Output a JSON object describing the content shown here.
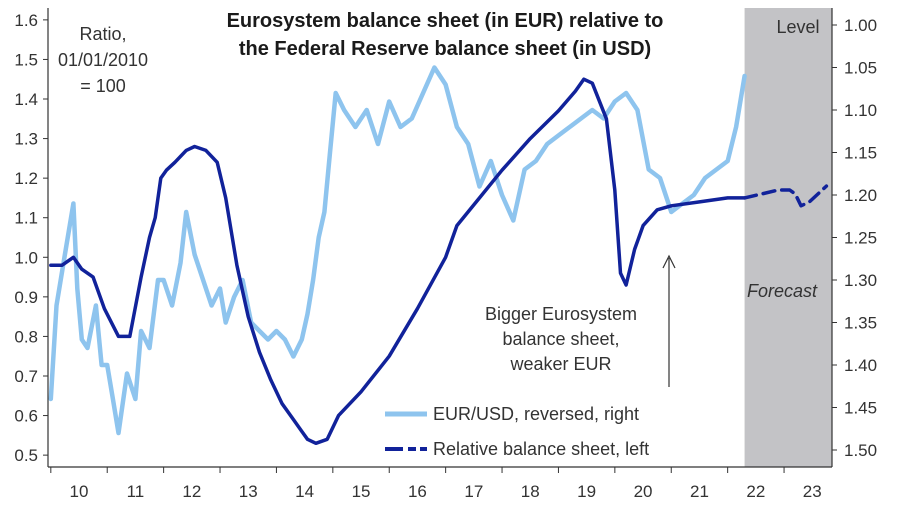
{
  "chart_data": {
    "type": "line",
    "title_lines": [
      "Eurosystem balance sheet (in EUR) relative to",
      "the Federal Reserve balance sheet (in USD)"
    ],
    "left_axis_note_lines": [
      "Ratio,",
      "01/01/2010",
      "= 100"
    ],
    "right_axis_label": "Level",
    "forecast_label": "Forecast",
    "annotation_lines": [
      "Bigger Eurosystem",
      "balance sheet,",
      "weaker EUR"
    ],
    "x_ticks": [
      "10",
      "11",
      "12",
      "13",
      "14",
      "15",
      "16",
      "17",
      "18",
      "19",
      "20",
      "21",
      "22",
      "23"
    ],
    "xlim": [
      2009.95,
      2023.85
    ],
    "left_ticks": [
      "0.5",
      "0.6",
      "0.7",
      "0.8",
      "0.9",
      "1.0",
      "1.1",
      "1.2",
      "1.3",
      "1.4",
      "1.5",
      "1.6"
    ],
    "ylim_left": [
      0.47,
      1.63
    ],
    "right_ticks": [
      "1.00",
      "1.05",
      "1.10",
      "1.15",
      "1.20",
      "1.25",
      "1.30",
      "1.35",
      "1.40",
      "1.45",
      "1.50"
    ],
    "ylim_right_reversed": [
      0.98,
      1.52
    ],
    "forecast_start": 2022.3,
    "colors": {
      "eurusd": "#8ec4ee",
      "relative": "#11229a",
      "forecast_shade": "#c3c3c6"
    },
    "legend": [
      {
        "label": "EUR/USD, reversed, right",
        "style": "solid-light"
      },
      {
        "label": "Relative balance sheet, left",
        "style": "solid-dashed-dark"
      }
    ],
    "series": [
      {
        "name": "EUR/USD, reversed, right",
        "axis": "right",
        "x": [
          2010.0,
          2010.1,
          2010.25,
          2010.4,
          2010.47,
          2010.55,
          2010.65,
          2010.8,
          2010.9,
          2011.0,
          2011.1,
          2011.2,
          2011.35,
          2011.5,
          2011.6,
          2011.75,
          2011.9,
          2012.0,
          2012.15,
          2012.3,
          2012.4,
          2012.55,
          2012.7,
          2012.85,
          2013.0,
          2013.1,
          2013.25,
          2013.4,
          2013.55,
          2013.7,
          2013.85,
          2014.0,
          2014.15,
          2014.3,
          2014.45,
          2014.55,
          2014.65,
          2014.75,
          2014.85,
          2014.95,
          2015.05,
          2015.2,
          2015.4,
          2015.6,
          2015.8,
          2016.0,
          2016.2,
          2016.4,
          2016.6,
          2016.8,
          2017.0,
          2017.2,
          2017.4,
          2017.6,
          2017.8,
          2018.0,
          2018.2,
          2018.4,
          2018.6,
          2018.8,
          2019.0,
          2019.2,
          2019.4,
          2019.6,
          2019.8,
          2020.0,
          2020.2,
          2020.4,
          2020.6,
          2020.8,
          2021.0,
          2021.2,
          2021.4,
          2021.6,
          2021.8,
          2022.0,
          2022.15,
          2022.3
        ],
        "y": [
          1.44,
          1.33,
          1.27,
          1.21,
          1.31,
          1.37,
          1.38,
          1.33,
          1.4,
          1.4,
          1.44,
          1.48,
          1.41,
          1.44,
          1.36,
          1.38,
          1.3,
          1.3,
          1.33,
          1.28,
          1.22,
          1.27,
          1.3,
          1.33,
          1.31,
          1.35,
          1.32,
          1.3,
          1.35,
          1.36,
          1.37,
          1.36,
          1.37,
          1.39,
          1.37,
          1.34,
          1.3,
          1.25,
          1.22,
          1.15,
          1.08,
          1.1,
          1.12,
          1.1,
          1.14,
          1.09,
          1.12,
          1.11,
          1.08,
          1.05,
          1.07,
          1.12,
          1.14,
          1.19,
          1.16,
          1.2,
          1.23,
          1.17,
          1.16,
          1.14,
          1.13,
          1.12,
          1.11,
          1.1,
          1.11,
          1.09,
          1.08,
          1.1,
          1.17,
          1.18,
          1.22,
          1.21,
          1.2,
          1.18,
          1.17,
          1.16,
          1.12,
          1.06
        ]
      },
      {
        "name": "Relative balance sheet, left",
        "axis": "left",
        "x": [
          2010.0,
          2010.2,
          2010.4,
          2010.55,
          2010.75,
          2010.95,
          2011.2,
          2011.4,
          2011.6,
          2011.75,
          2011.85,
          2011.95,
          2012.05,
          2012.2,
          2012.4,
          2012.55,
          2012.75,
          2012.95,
          2013.1,
          2013.3,
          2013.5,
          2013.7,
          2013.9,
          2014.1,
          2014.3,
          2014.45,
          2014.55,
          2014.7,
          2014.9,
          2015.1,
          2015.5,
          2016.0,
          2016.5,
          2017.0,
          2017.2,
          2017.6,
          2018.0,
          2018.5,
          2019.0,
          2019.3,
          2019.45,
          2019.6,
          2019.85,
          2020.0,
          2020.1,
          2020.2,
          2020.35,
          2020.5,
          2020.75,
          2021.0,
          2021.5,
          2022.0,
          2022.3
        ],
        "y": [
          0.98,
          0.98,
          1.0,
          0.97,
          0.95,
          0.87,
          0.8,
          0.8,
          0.95,
          1.05,
          1.1,
          1.2,
          1.22,
          1.24,
          1.27,
          1.28,
          1.27,
          1.24,
          1.15,
          0.98,
          0.85,
          0.76,
          0.69,
          0.63,
          0.59,
          0.56,
          0.54,
          0.53,
          0.54,
          0.6,
          0.66,
          0.75,
          0.87,
          1.0,
          1.08,
          1.15,
          1.22,
          1.3,
          1.37,
          1.42,
          1.45,
          1.44,
          1.35,
          1.17,
          0.96,
          0.93,
          1.02,
          1.08,
          1.12,
          1.13,
          1.14,
          1.15,
          1.15
        ]
      },
      {
        "name": "Relative balance sheet, left (forecast)",
        "axis": "left",
        "dashed": true,
        "x": [
          2022.3,
          2022.6,
          2022.9,
          2023.1,
          2023.2,
          2023.3,
          2023.45,
          2023.6,
          2023.75
        ],
        "y": [
          1.15,
          1.16,
          1.17,
          1.17,
          1.16,
          1.13,
          1.14,
          1.16,
          1.18
        ]
      }
    ]
  }
}
